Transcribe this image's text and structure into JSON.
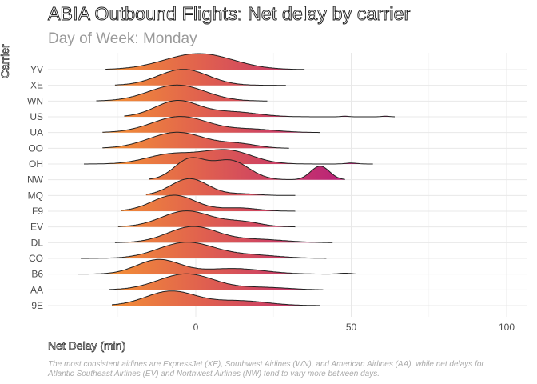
{
  "title": "ABIA Outbound Flights: Net delay by carrier",
  "subtitle": "Day of Week: Monday",
  "caption": "The most consistent airlines are ExpressJet (XE), Southwest Airlines (WN), and American Airlines (AA), while net delays for Atlantic Southeast Airlines (EV) and Northwest Airlines (NW) tend to vary more between days.",
  "colors": {
    "low": "#fba32b",
    "mid": "#e0604f",
    "high": "#bb2477",
    "grid": "#e8e8e8",
    "outline": "#222222"
  },
  "chart_data": {
    "type": "ridgeline",
    "xlabel": "Net Delay (min)",
    "ylabel": "Carrier",
    "xlim": [
      -50,
      105
    ],
    "xticks": [
      0,
      50,
      100
    ],
    "grid": true,
    "categories": [
      "YV",
      "XE",
      "WN",
      "US",
      "UA",
      "OO",
      "OH",
      "NW",
      "MQ",
      "F9",
      "EV",
      "DL",
      "CO",
      "B6",
      "AA",
      "9E"
    ],
    "series": [
      {
        "category": "YV",
        "range": [
          -29,
          35
        ],
        "components": [
          [
            1,
            11,
            1.0
          ]
        ]
      },
      {
        "category": "XE",
        "range": [
          -26,
          29
        ],
        "components": [
          [
            -4,
            8,
            1.0
          ]
        ]
      },
      {
        "category": "WN",
        "range": [
          -32,
          23
        ],
        "components": [
          [
            -6,
            9,
            1.0
          ]
        ]
      },
      {
        "category": "US",
        "range": [
          -23,
          64
        ],
        "components": [
          [
            -6,
            7,
            1.0
          ],
          [
            12,
            8,
            0.3
          ],
          [
            48,
            1.2,
            0.04
          ],
          [
            61,
            1.2,
            0.04
          ]
        ]
      },
      {
        "category": "UA",
        "range": [
          -30,
          40
        ],
        "components": [
          [
            -5,
            9,
            1.0
          ],
          [
            18,
            8,
            0.2
          ]
        ]
      },
      {
        "category": "OO",
        "range": [
          -30,
          30
        ],
        "components": [
          [
            -6,
            9,
            1.0
          ],
          [
            14,
            6,
            0.25
          ]
        ]
      },
      {
        "category": "OH",
        "range": [
          -36,
          57
        ],
        "components": [
          [
            -8,
            8,
            0.6
          ],
          [
            10,
            8,
            0.85
          ],
          [
            50,
            2,
            0.06
          ]
        ]
      },
      {
        "category": "NW",
        "range": [
          -15,
          48
        ],
        "components": [
          [
            -2,
            5,
            1.25
          ],
          [
            11,
            6,
            1.2
          ],
          [
            40,
            3,
            0.85
          ]
        ]
      },
      {
        "category": "MQ",
        "range": [
          -16,
          32
        ],
        "components": [
          [
            -2,
            6,
            1.05
          ],
          [
            15,
            5,
            0.1
          ]
        ]
      },
      {
        "category": "F9",
        "range": [
          -24,
          32
        ],
        "components": [
          [
            -7,
            7,
            1.0
          ],
          [
            14,
            6,
            0.2
          ]
        ]
      },
      {
        "category": "EV",
        "range": [
          -25,
          32
        ],
        "components": [
          [
            -3,
            8,
            1.0
          ],
          [
            15,
            6,
            0.3
          ]
        ]
      },
      {
        "category": "DL",
        "range": [
          -26,
          44
        ],
        "components": [
          [
            -1,
            8,
            1.0
          ],
          [
            20,
            9,
            0.2
          ]
        ]
      },
      {
        "category": "CO",
        "range": [
          -37,
          42
        ],
        "components": [
          [
            -3,
            9,
            1.0
          ],
          [
            18,
            9,
            0.2
          ]
        ]
      },
      {
        "category": "B6",
        "range": [
          -38,
          52
        ],
        "components": [
          [
            -12,
            7,
            0.9
          ],
          [
            12,
            10,
            0.35
          ],
          [
            48,
            2,
            0.06
          ]
        ]
      },
      {
        "category": "AA",
        "range": [
          -28,
          41
        ],
        "components": [
          [
            -3,
            9,
            1.0
          ],
          [
            22,
            8,
            0.15
          ]
        ]
      },
      {
        "category": "9E",
        "range": [
          -27,
          40
        ],
        "components": [
          [
            -8,
            8,
            0.9
          ],
          [
            14,
            9,
            0.3
          ]
        ]
      }
    ]
  }
}
